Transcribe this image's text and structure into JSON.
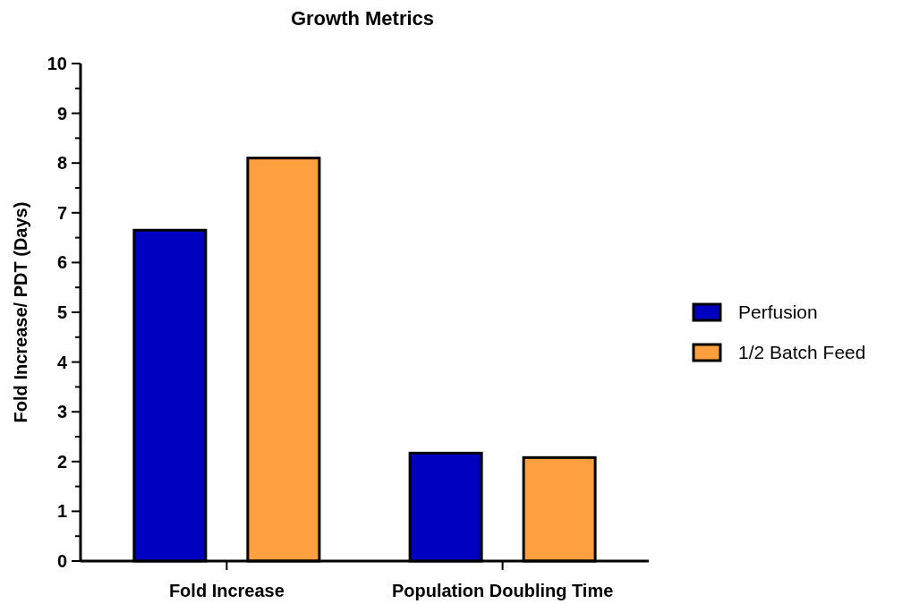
{
  "chart_data": {
    "type": "bar",
    "title": "Growth Metrics",
    "ylabel": "Fold Increase/ PDT (Days)",
    "categories": [
      "Fold Increase",
      "Population Doubling Time"
    ],
    "series": [
      {
        "name": "Perfusion",
        "color": "#0000c0",
        "values": [
          6.65,
          2.17
        ]
      },
      {
        "name": "1/2 Batch Feed",
        "color": "#ffa040",
        "values": [
          8.1,
          2.08
        ]
      }
    ],
    "ylim": [
      0,
      10
    ],
    "yticks": [
      0,
      {
        "value": 0.5,
        "label": null
      },
      1,
      {
        "value": 1.5,
        "label": null
      },
      2,
      {
        "value": 2.5,
        "label": null
      },
      3,
      {
        "value": 3.5,
        "label": null
      },
      4,
      {
        "value": 4.5,
        "label": null
      },
      5,
      {
        "value": 5.5,
        "label": null
      },
      6,
      {
        "value": 6.5,
        "label": null
      },
      7,
      {
        "value": 7.5,
        "label": null
      },
      8,
      {
        "value": 8.5,
        "label": null
      },
      9,
      {
        "value": 9.5,
        "label": null
      },
      10
    ],
    "grid": false,
    "legend": "right"
  }
}
